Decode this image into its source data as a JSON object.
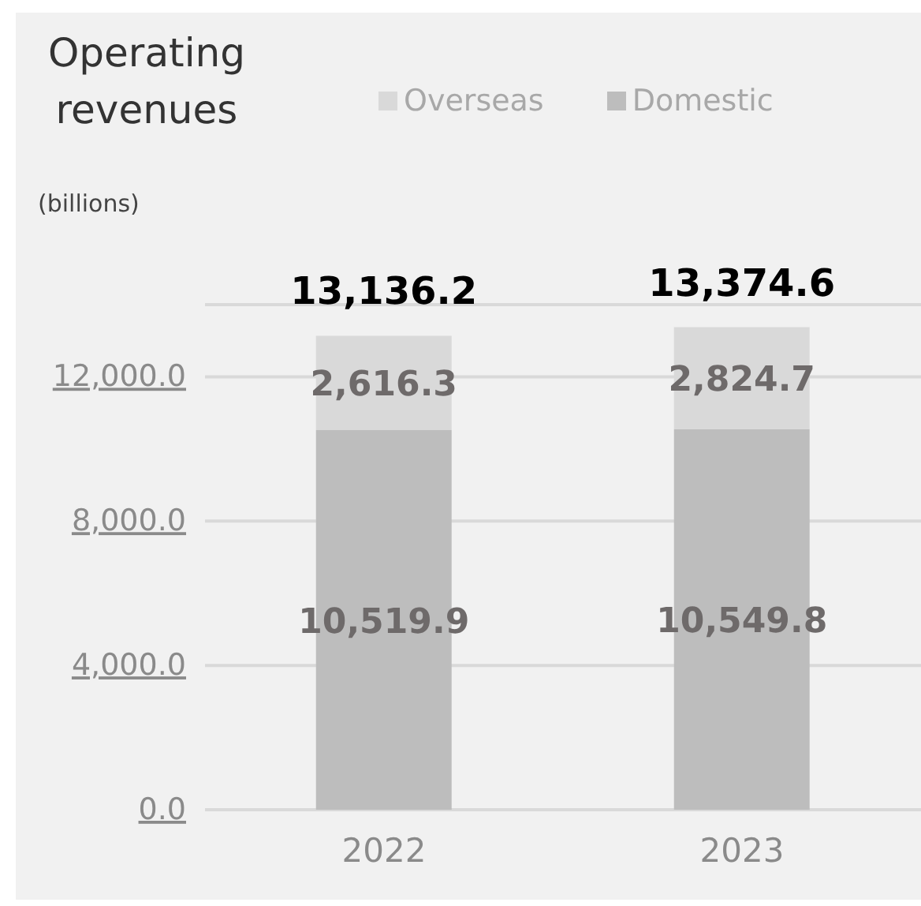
{
  "chart_data": {
    "type": "bar",
    "title": "Operating revenues",
    "ylabel": "(billions)",
    "categories": [
      "2022",
      "2023"
    ],
    "stacked": true,
    "series": [
      {
        "name": "Domestic",
        "color": "#bdbdbd",
        "values": [
          10519.9,
          10549.8
        ],
        "value_labels": [
          "10,519.9",
          "10,549.8"
        ]
      },
      {
        "name": "Overseas",
        "color": "#d9d9d9",
        "values": [
          2616.3,
          2824.7
        ],
        "value_labels": [
          "2,616.3",
          "2,824.7"
        ]
      }
    ],
    "totals": [
      "13,136.2",
      "13,374.6"
    ],
    "ylim": [
      0,
      14000
    ],
    "yticks": [
      {
        "value": 0,
        "label": "0.0"
      },
      {
        "value": 4000,
        "label": "4,000.0"
      },
      {
        "value": 8000,
        "label": "8,000.0"
      },
      {
        "value": 12000,
        "label": "12,000.0"
      }
    ],
    "grid": "y",
    "legend": "top"
  }
}
